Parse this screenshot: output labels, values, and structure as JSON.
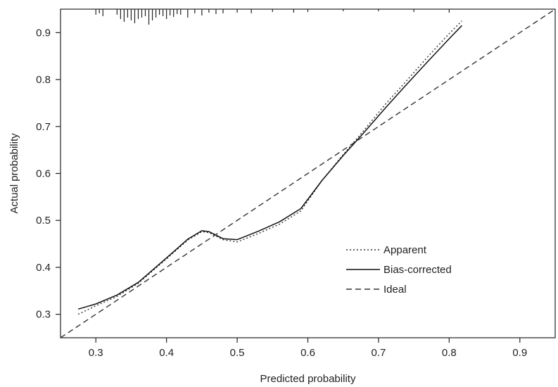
{
  "chart_data": {
    "type": "line",
    "title": "",
    "xlabel": "Predicted probability",
    "ylabel": "Actual probability",
    "xlim": [
      0.25,
      0.95
    ],
    "ylim": [
      0.25,
      0.95
    ],
    "xticks": [
      "0.3",
      "0.4",
      "0.5",
      "0.6",
      "0.7",
      "0.8",
      "0.9"
    ],
    "yticks": [
      "0.3",
      "0.4",
      "0.5",
      "0.6",
      "0.7",
      "0.8",
      "0.9"
    ],
    "grid": false,
    "legend_position": "lower-right",
    "series": [
      {
        "name": "Apparent",
        "style": "dotted",
        "color": "#333333",
        "x": [
          0.275,
          0.3,
          0.33,
          0.36,
          0.4,
          0.43,
          0.45,
          0.46,
          0.48,
          0.5,
          0.53,
          0.56,
          0.59,
          0.62,
          0.65,
          0.68,
          0.71,
          0.74,
          0.77,
          0.8,
          0.818
        ],
        "y": [
          0.3,
          0.318,
          0.338,
          0.366,
          0.418,
          0.458,
          0.476,
          0.474,
          0.459,
          0.454,
          0.472,
          0.492,
          0.52,
          0.585,
          0.64,
          0.693,
          0.748,
          0.798,
          0.849,
          0.898,
          0.925
        ]
      },
      {
        "name": "Bias-corrected",
        "style": "solid",
        "color": "#111111",
        "x": [
          0.275,
          0.3,
          0.33,
          0.36,
          0.4,
          0.43,
          0.45,
          0.46,
          0.48,
          0.5,
          0.53,
          0.56,
          0.59,
          0.62,
          0.65,
          0.68,
          0.71,
          0.74,
          0.77,
          0.8,
          0.818
        ],
        "y": [
          0.311,
          0.322,
          0.341,
          0.368,
          0.42,
          0.46,
          0.478,
          0.476,
          0.461,
          0.459,
          0.477,
          0.497,
          0.525,
          0.585,
          0.638,
          0.688,
          0.74,
          0.79,
          0.839,
          0.887,
          0.915
        ]
      },
      {
        "name": "Ideal",
        "style": "dashed",
        "color": "#333333",
        "x": [
          0.25,
          0.95
        ],
        "y": [
          0.25,
          0.95
        ]
      }
    ],
    "rug": {
      "description_values_x": [
        0.3,
        0.305,
        0.31,
        0.33,
        0.335,
        0.34,
        0.345,
        0.35,
        0.355,
        0.36,
        0.365,
        0.37,
        0.375,
        0.38,
        0.385,
        0.39,
        0.395,
        0.4,
        0.405,
        0.41,
        0.415,
        0.42,
        0.43,
        0.44,
        0.45,
        0.46,
        0.47,
        0.48,
        0.5,
        0.52,
        0.55,
        0.58,
        0.6,
        0.65,
        0.7,
        0.75,
        0.8
      ],
      "heights": [
        8,
        6,
        10,
        8,
        14,
        18,
        12,
        16,
        20,
        14,
        12,
        10,
        22,
        16,
        12,
        8,
        10,
        14,
        9,
        11,
        7,
        8,
        12,
        6,
        9,
        5,
        7,
        6,
        5,
        6,
        4,
        5,
        4,
        3,
        3,
        4,
        5
      ]
    }
  }
}
